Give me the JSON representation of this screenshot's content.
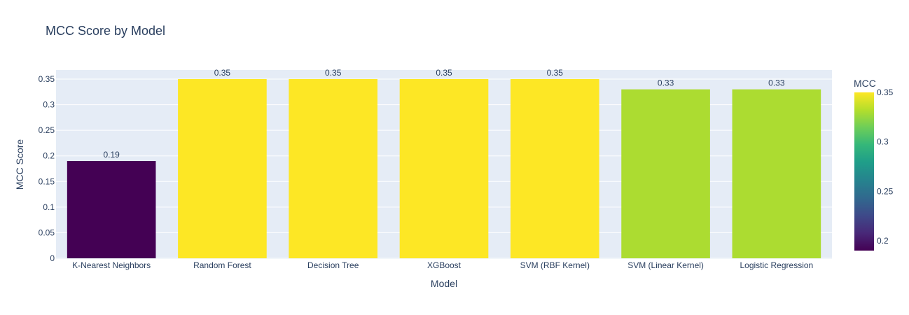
{
  "chart_data": {
    "type": "bar",
    "title": "MCC Score by Model",
    "xlabel": "Model",
    "ylabel": "MCC Score",
    "categories": [
      "K-Nearest Neighbors",
      "Random Forest",
      "Decision Tree",
      "XGBoost",
      "SVM (RBF Kernel)",
      "SVM (Linear Kernel)",
      "Logistic Regression"
    ],
    "values": [
      0.19,
      0.35,
      0.35,
      0.35,
      0.35,
      0.33,
      0.33
    ],
    "data_labels": [
      "0.19",
      "0.35",
      "0.35",
      "0.35",
      "0.35",
      "0.33",
      "0.33"
    ],
    "ylim": [
      0,
      0.35
    ],
    "yticks": [
      0,
      0.05,
      0.1,
      0.15,
      0.2,
      0.25,
      0.3,
      0.35
    ],
    "ytick_labels": [
      "0",
      "0.05",
      "0.1",
      "0.15",
      "0.2",
      "0.25",
      "0.3",
      "0.35"
    ],
    "grid": true,
    "colorbar": {
      "title": "MCC",
      "range": [
        0.19,
        0.35
      ],
      "ticks": [
        0.2,
        0.25,
        0.3,
        0.35
      ],
      "tick_labels": [
        "0.2",
        "0.25",
        "0.3",
        "0.35"
      ],
      "colorscale": "Viridis",
      "placement": "right"
    },
    "colors": {
      "plot_background": "#e5ecf6",
      "text": "#2a3f5f",
      "gridline": "#ffffff"
    }
  }
}
